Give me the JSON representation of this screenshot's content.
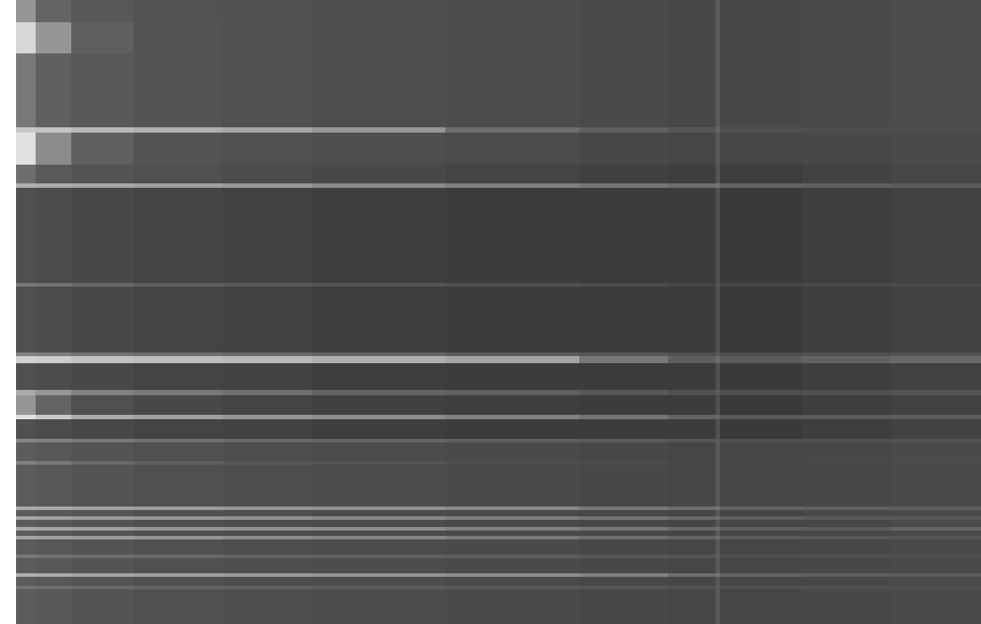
{
  "chart_data": {
    "type": "heatmap",
    "tick_labels": false,
    "grid": false,
    "xlim": [
      18,
      1101
    ],
    "ylim": [
      701,
      0
    ],
    "zlim": [
      0,
      255
    ],
    "x": [
      18,
      40,
      80,
      150,
      250,
      350,
      500,
      650,
      750,
      803,
      808,
      900,
      1000,
      1101
    ],
    "y": [
      0,
      25,
      60,
      143,
      149,
      185,
      206,
      211,
      318,
      322,
      396,
      400,
      408,
      438,
      444,
      466,
      471,
      493,
      497,
      518,
      522,
      569,
      573,
      580,
      584,
      592,
      596,
      602,
      606,
      623,
      627,
      644,
      648,
      658,
      662,
      701
    ],
    "z": [
      [
        150,
        100,
        88,
        82,
        80,
        78,
        76,
        74,
        72,
        90,
        72,
        74,
        76
      ],
      [
        215,
        150,
        95,
        84,
        80,
        78,
        76,
        74,
        72,
        90,
        72,
        74,
        76
      ],
      [
        120,
        95,
        88,
        84,
        80,
        78,
        76,
        74,
        72,
        90,
        72,
        74,
        76
      ],
      [
        200,
        195,
        185,
        175,
        165,
        150,
        110,
        95,
        85,
        100,
        80,
        78,
        78
      ],
      [
        225,
        140,
        95,
        84,
        80,
        78,
        75,
        72,
        70,
        88,
        70,
        72,
        74
      ],
      [
        110,
        90,
        84,
        80,
        76,
        72,
        68,
        64,
        62,
        84,
        62,
        66,
        70
      ],
      [
        175,
        170,
        165,
        158,
        150,
        140,
        128,
        118,
        110,
        115,
        100,
        95,
        92
      ],
      [
        80,
        76,
        72,
        68,
        66,
        62,
        60,
        60,
        60,
        80,
        58,
        62,
        66
      ],
      [
        120,
        115,
        105,
        95,
        90,
        85,
        80,
        75,
        70,
        85,
        70,
        72,
        75
      ],
      [
        80,
        76,
        72,
        68,
        66,
        62,
        60,
        60,
        60,
        80,
        58,
        62,
        66
      ],
      [
        130,
        125,
        115,
        110,
        105,
        100,
        92,
        85,
        80,
        90,
        78,
        80,
        82
      ],
      [
        210,
        205,
        195,
        190,
        185,
        175,
        165,
        120,
        95,
        110,
        92,
        98,
        105
      ],
      [
        80,
        76,
        72,
        68,
        66,
        62,
        60,
        60,
        60,
        80,
        58,
        62,
        66
      ],
      [
        170,
        150,
        130,
        120,
        110,
        100,
        95,
        88,
        80,
        90,
        78,
        80,
        82
      ],
      [
        150,
        100,
        80,
        72,
        68,
        64,
        62,
        60,
        60,
        80,
        58,
        62,
        66
      ],
      [
        225,
        200,
        170,
        160,
        150,
        140,
        130,
        115,
        100,
        105,
        90,
        90,
        92
      ],
      [
        80,
        76,
        72,
        68,
        66,
        62,
        60,
        60,
        60,
        80,
        58,
        62,
        66
      ],
      [
        135,
        130,
        120,
        112,
        105,
        100,
        95,
        90,
        85,
        92,
        80,
        80,
        82
      ],
      [
        92,
        88,
        84,
        80,
        78,
        76,
        74,
        72,
        70,
        88,
        70,
        72,
        74
      ],
      [
        130,
        120,
        105,
        95,
        88,
        84,
        80,
        76,
        72,
        88,
        72,
        74,
        76
      ],
      [
        92,
        88,
        84,
        80,
        78,
        76,
        74,
        72,
        70,
        88,
        70,
        72,
        74
      ],
      [
        170,
        168,
        162,
        155,
        150,
        145,
        135,
        120,
        110,
        115,
        100,
        95,
        92
      ],
      [
        92,
        88,
        84,
        80,
        78,
        76,
        74,
        72,
        70,
        88,
        70,
        72,
        74
      ],
      [
        165,
        160,
        155,
        150,
        145,
        135,
        125,
        115,
        105,
        110,
        95,
        90,
        88
      ],
      [
        92,
        88,
        84,
        80,
        78,
        76,
        74,
        72,
        70,
        88,
        70,
        72,
        74
      ],
      [
        170,
        165,
        160,
        150,
        145,
        140,
        130,
        118,
        105,
        110,
        95,
        92,
        100
      ],
      [
        92,
        88,
        84,
        80,
        78,
        76,
        74,
        72,
        70,
        88,
        70,
        72,
        74
      ],
      [
        165,
        160,
        155,
        148,
        140,
        132,
        122,
        110,
        100,
        108,
        90,
        88,
        86
      ],
      [
        92,
        88,
        84,
        80,
        78,
        76,
        74,
        72,
        70,
        88,
        70,
        72,
        74
      ],
      [
        120,
        115,
        110,
        105,
        100,
        96,
        92,
        88,
        84,
        95,
        80,
        80,
        80
      ],
      [
        92,
        88,
        84,
        80,
        78,
        76,
        74,
        72,
        70,
        88,
        70,
        72,
        74
      ],
      [
        175,
        170,
        165,
        160,
        155,
        148,
        140,
        130,
        110,
        115,
        98,
        94,
        92
      ],
      [
        92,
        88,
        84,
        80,
        78,
        76,
        74,
        72,
        70,
        88,
        70,
        72,
        74
      ],
      [
        115,
        110,
        105,
        100,
        96,
        92,
        88,
        85,
        82,
        92,
        80,
        80,
        80
      ],
      [
        92,
        88,
        84,
        80,
        78,
        76,
        74,
        72,
        70,
        88,
        70,
        72,
        74
      ]
    ]
  }
}
